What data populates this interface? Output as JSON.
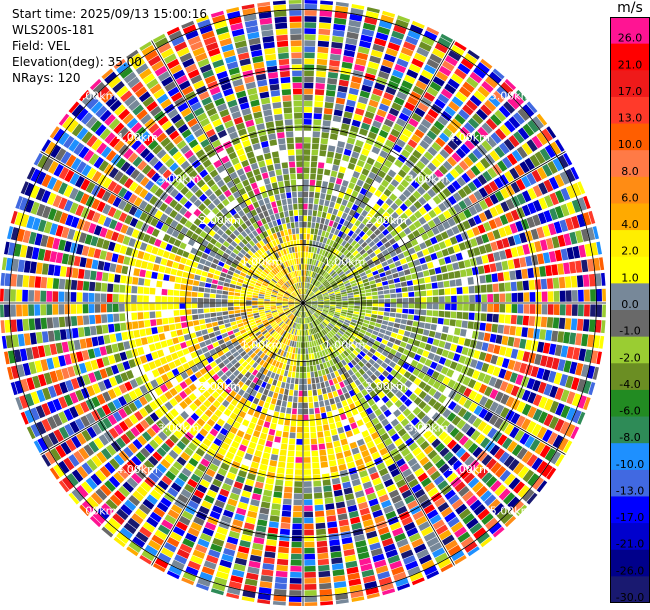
{
  "header": {
    "start_time": "Start time: 2025/09/13 15:00:16",
    "instrument": "WLS200s-181",
    "field": "Field: VEL",
    "elevation": "Elevation(deg): 35.00",
    "nrays": "NRays: 120"
  },
  "colorbar": {
    "unit": "m/s",
    "bins": [
      {
        "label": "26.0",
        "color": "#ff1493"
      },
      {
        "label": "21.0",
        "color": "#ff0000"
      },
      {
        "label": "17.0",
        "color": "#ef1a1a"
      },
      {
        "label": "13.0",
        "color": "#ff3a2a"
      },
      {
        "label": "10.0",
        "color": "#ff5e00"
      },
      {
        "label": "8.0",
        "color": "#ff7a46"
      },
      {
        "label": "6.0",
        "color": "#ff8c14"
      },
      {
        "label": "4.0",
        "color": "#ffaa00"
      },
      {
        "label": "2.0",
        "color": "#ffee00"
      },
      {
        "label": "1.0",
        "color": "#ffff00"
      },
      {
        "label": "0.0",
        "color": "#778899"
      },
      {
        "label": "-1.0",
        "color": "#696969"
      },
      {
        "label": "-2.0",
        "color": "#9acd32"
      },
      {
        "label": "-4.0",
        "color": "#6b8e23"
      },
      {
        "label": "-6.0",
        "color": "#228b22"
      },
      {
        "label": "-8.0",
        "color": "#2e8b57"
      },
      {
        "label": "-10.0",
        "color": "#1e90ff"
      },
      {
        "label": "-13.0",
        "color": "#4169e1"
      },
      {
        "label": "-17.0",
        "color": "#0000ff"
      },
      {
        "label": "-21.0",
        "color": "#0000cd"
      },
      {
        "label": "-26.0",
        "color": "#00008b"
      },
      {
        "label": "-30.0",
        "color": "#191970"
      }
    ]
  },
  "chart_data": {
    "type": "ppi",
    "field": "VEL",
    "units": "m/s",
    "elevation_deg": 35.0,
    "nrays": 120,
    "range_rings_km": [
      1,
      2,
      3,
      4,
      5
    ],
    "ring_labels": [
      "1.00km",
      "2.00km",
      "3.00km",
      "4.00km",
      "5.00km"
    ],
    "max_range_km": 6.0,
    "spoke_count": 12,
    "patterns": [
      {
        "region": "inner NW/W (r < 1.2 km)",
        "value": 1.5
      },
      {
        "region": "inner E (r < 1.5 km)",
        "value": -1.5
      },
      {
        "region": "SW-S belt (1.0-2.8 km)",
        "value": 1.5
      },
      {
        "region": "NE/E belt (1.5-3.0 km)",
        "value": -2.0
      },
      {
        "region": "N/NW belt (2.0-3.0 km)",
        "value": -4.0
      },
      {
        "region": "mid annulus (1.2-1.8 km)",
        "value": -0.5
      },
      {
        "region": "outer (> 3.3 km)",
        "value": "noise"
      }
    ]
  }
}
